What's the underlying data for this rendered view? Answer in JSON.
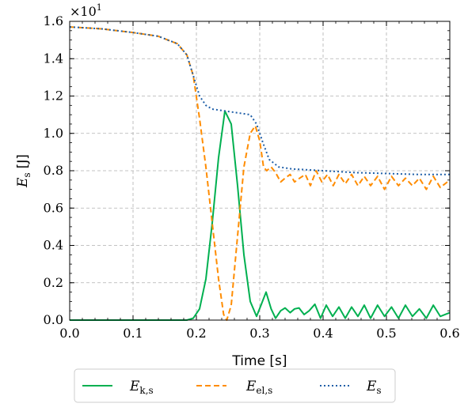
{
  "chart_data": {
    "type": "line",
    "title": "",
    "xlabel": "Time [s]",
    "ylabel_main": "E",
    "ylabel_sub": "s",
    "ylabel_unit": "[J]",
    "offset_base": "×10",
    "offset_exp": "1",
    "xlim": [
      0.0,
      0.6
    ],
    "ylim": [
      0.0,
      1.6
    ],
    "x_ticks": [
      0.0,
      0.1,
      0.2,
      0.3,
      0.4,
      0.5,
      0.6
    ],
    "x_tick_labels": [
      "0.0",
      "0.1",
      "0.2",
      "0.3",
      "0.4",
      "0.5",
      "0.6"
    ],
    "y_ticks": [
      0.0,
      0.2,
      0.4,
      0.6,
      0.8,
      1.0,
      1.2,
      1.4,
      1.6
    ],
    "y_tick_labels": [
      "0.0",
      "0.2",
      "0.4",
      "0.6",
      "0.8",
      "1.0",
      "1.2",
      "1.4",
      "1.6"
    ],
    "grid": true,
    "legend_position": "bottom-center-outside",
    "series": [
      {
        "name_main": "E",
        "name_sub": "k,s",
        "color": "#00b050",
        "dash": "solid",
        "points": [
          [
            0.0,
            0.0
          ],
          [
            0.185,
            0.0
          ],
          [
            0.195,
            0.01
          ],
          [
            0.205,
            0.06
          ],
          [
            0.215,
            0.22
          ],
          [
            0.225,
            0.52
          ],
          [
            0.235,
            0.87
          ],
          [
            0.245,
            1.12
          ],
          [
            0.255,
            1.05
          ],
          [
            0.265,
            0.72
          ],
          [
            0.275,
            0.35
          ],
          [
            0.285,
            0.1
          ],
          [
            0.295,
            0.02
          ],
          [
            0.302,
            0.08
          ],
          [
            0.31,
            0.15
          ],
          [
            0.318,
            0.06
          ],
          [
            0.325,
            0.01
          ],
          [
            0.333,
            0.05
          ],
          [
            0.34,
            0.065
          ],
          [
            0.348,
            0.04
          ],
          [
            0.355,
            0.06
          ],
          [
            0.362,
            0.065
          ],
          [
            0.37,
            0.03
          ],
          [
            0.378,
            0.05
          ],
          [
            0.387,
            0.085
          ],
          [
            0.396,
            0.01
          ],
          [
            0.405,
            0.08
          ],
          [
            0.415,
            0.02
          ],
          [
            0.425,
            0.07
          ],
          [
            0.435,
            0.01
          ],
          [
            0.445,
            0.07
          ],
          [
            0.455,
            0.02
          ],
          [
            0.465,
            0.08
          ],
          [
            0.475,
            0.01
          ],
          [
            0.486,
            0.08
          ],
          [
            0.497,
            0.02
          ],
          [
            0.508,
            0.07
          ],
          [
            0.519,
            0.01
          ],
          [
            0.53,
            0.08
          ],
          [
            0.541,
            0.02
          ],
          [
            0.552,
            0.06
          ],
          [
            0.563,
            0.01
          ],
          [
            0.574,
            0.08
          ],
          [
            0.585,
            0.02
          ],
          [
            0.6,
            0.04
          ]
        ]
      },
      {
        "name_main": "E",
        "name_sub": "el,s",
        "color": "#ff8c00",
        "dash": "7,4",
        "points": [
          [
            0.0,
            1.57
          ],
          [
            0.05,
            1.56
          ],
          [
            0.1,
            1.54
          ],
          [
            0.14,
            1.52
          ],
          [
            0.17,
            1.48
          ],
          [
            0.185,
            1.42
          ],
          [
            0.195,
            1.31
          ],
          [
            0.205,
            1.08
          ],
          [
            0.215,
            0.82
          ],
          [
            0.225,
            0.52
          ],
          [
            0.235,
            0.22
          ],
          [
            0.243,
            0.03
          ],
          [
            0.248,
            0.0
          ],
          [
            0.255,
            0.08
          ],
          [
            0.265,
            0.45
          ],
          [
            0.275,
            0.82
          ],
          [
            0.285,
            1.0
          ],
          [
            0.293,
            1.04
          ],
          [
            0.3,
            0.96
          ],
          [
            0.306,
            0.82
          ],
          [
            0.311,
            0.8
          ],
          [
            0.318,
            0.82
          ],
          [
            0.325,
            0.79
          ],
          [
            0.333,
            0.74
          ],
          [
            0.34,
            0.76
          ],
          [
            0.348,
            0.78
          ],
          [
            0.355,
            0.74
          ],
          [
            0.363,
            0.76
          ],
          [
            0.372,
            0.78
          ],
          [
            0.38,
            0.72
          ],
          [
            0.389,
            0.8
          ],
          [
            0.398,
            0.74
          ],
          [
            0.407,
            0.78
          ],
          [
            0.416,
            0.72
          ],
          [
            0.425,
            0.78
          ],
          [
            0.435,
            0.73
          ],
          [
            0.445,
            0.78
          ],
          [
            0.455,
            0.72
          ],
          [
            0.465,
            0.77
          ],
          [
            0.475,
            0.72
          ],
          [
            0.486,
            0.77
          ],
          [
            0.497,
            0.7
          ],
          [
            0.508,
            0.77
          ],
          [
            0.519,
            0.72
          ],
          [
            0.53,
            0.76
          ],
          [
            0.541,
            0.72
          ],
          [
            0.552,
            0.76
          ],
          [
            0.563,
            0.7
          ],
          [
            0.574,
            0.77
          ],
          [
            0.585,
            0.71
          ],
          [
            0.6,
            0.75
          ]
        ]
      },
      {
        "name_main": "E",
        "name_sub": "s",
        "color": "#1f5fa8",
        "dash": "2,3",
        "points": [
          [
            0.0,
            1.57
          ],
          [
            0.05,
            1.56
          ],
          [
            0.1,
            1.54
          ],
          [
            0.14,
            1.52
          ],
          [
            0.17,
            1.48
          ],
          [
            0.185,
            1.42
          ],
          [
            0.195,
            1.31
          ],
          [
            0.205,
            1.2
          ],
          [
            0.215,
            1.15
          ],
          [
            0.225,
            1.13
          ],
          [
            0.245,
            1.12
          ],
          [
            0.265,
            1.11
          ],
          [
            0.285,
            1.1
          ],
          [
            0.295,
            1.05
          ],
          [
            0.305,
            0.95
          ],
          [
            0.315,
            0.86
          ],
          [
            0.33,
            0.82
          ],
          [
            0.35,
            0.81
          ],
          [
            0.4,
            0.8
          ],
          [
            0.45,
            0.79
          ],
          [
            0.5,
            0.785
          ],
          [
            0.55,
            0.78
          ],
          [
            0.6,
            0.78
          ]
        ]
      }
    ]
  }
}
